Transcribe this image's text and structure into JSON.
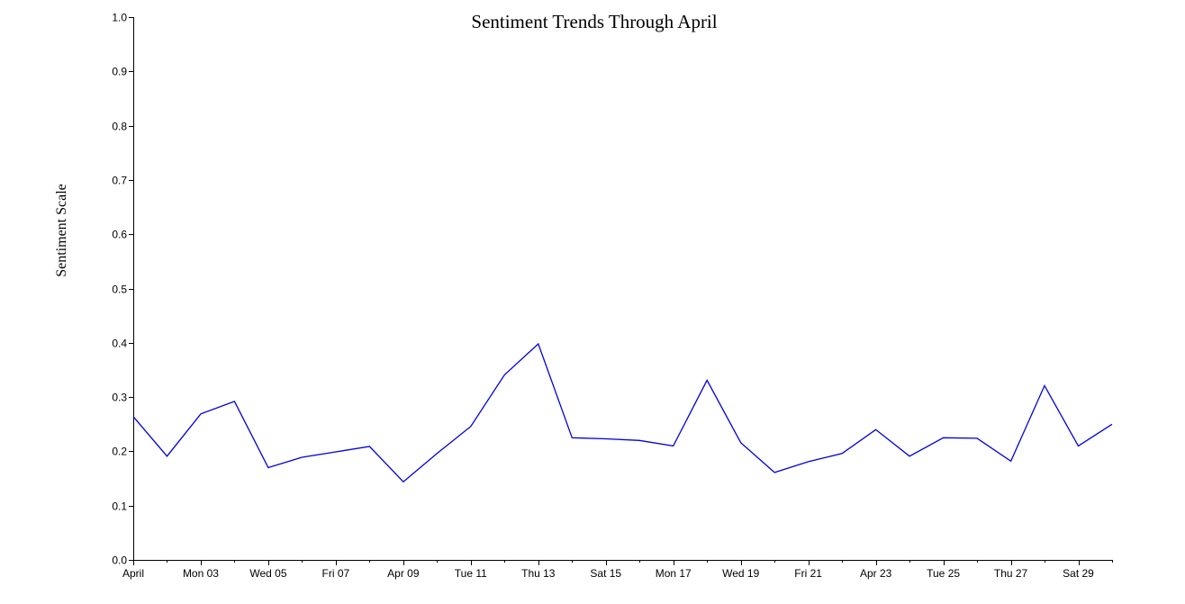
{
  "chart_data": {
    "type": "line",
    "title": "Sentiment Trends Through April",
    "xlabel": "",
    "ylabel": "Sentiment Scale",
    "ylim": [
      0,
      1
    ],
    "xlim": [
      "2023-04-01",
      "2023-04-30"
    ],
    "grid": false,
    "y_ticks": [
      "0.0",
      "0.1",
      "0.2",
      "0.3",
      "0.4",
      "0.5",
      "0.6",
      "0.7",
      "0.8",
      "0.9",
      "1.0"
    ],
    "x_ticks": [
      {
        "date": "2023-04-01",
        "label": "April"
      },
      {
        "date": "2023-04-03",
        "label": "Mon 03"
      },
      {
        "date": "2023-04-05",
        "label": "Wed 05"
      },
      {
        "date": "2023-04-07",
        "label": "Fri 07"
      },
      {
        "date": "2023-04-09",
        "label": "Apr 09"
      },
      {
        "date": "2023-04-11",
        "label": "Tue 11"
      },
      {
        "date": "2023-04-13",
        "label": "Thu 13"
      },
      {
        "date": "2023-04-15",
        "label": "Sat 15"
      },
      {
        "date": "2023-04-17",
        "label": "Mon 17"
      },
      {
        "date": "2023-04-19",
        "label": "Wed 19"
      },
      {
        "date": "2023-04-21",
        "label": "Fri 21"
      },
      {
        "date": "2023-04-23",
        "label": "Apr 23"
      },
      {
        "date": "2023-04-25",
        "label": "Tue 25"
      },
      {
        "date": "2023-04-27",
        "label": "Thu 27"
      },
      {
        "date": "2023-04-29",
        "label": "Sat 29"
      }
    ],
    "series": [
      {
        "color": "#0000dd",
        "x": [
          "2023-04-01",
          "2023-04-02",
          "2023-04-03",
          "2023-04-04",
          "2023-04-05",
          "2023-04-06",
          "2023-04-07",
          "2023-04-08",
          "2023-04-09",
          "2023-04-10",
          "2023-04-11",
          "2023-04-12",
          "2023-04-13",
          "2023-04-14",
          "2023-04-15",
          "2023-04-16",
          "2023-04-17",
          "2023-04-18",
          "2023-04-19",
          "2023-04-20",
          "2023-04-21",
          "2023-04-22",
          "2023-04-23",
          "2023-04-24",
          "2023-04-25",
          "2023-04-26",
          "2023-04-27",
          "2023-04-28",
          "2023-04-29",
          "2023-04-30"
        ],
        "values": [
          0.264,
          0.191,
          0.269,
          0.292,
          0.17,
          0.189,
          0.199,
          0.209,
          0.144,
          0.196,
          0.246,
          0.341,
          0.398,
          0.225,
          0.223,
          0.22,
          0.21,
          0.331,
          0.216,
          0.161,
          0.181,
          0.196,
          0.24,
          0.191,
          0.225,
          0.224,
          0.182,
          0.321,
          0.21,
          0.25
        ]
      }
    ]
  }
}
